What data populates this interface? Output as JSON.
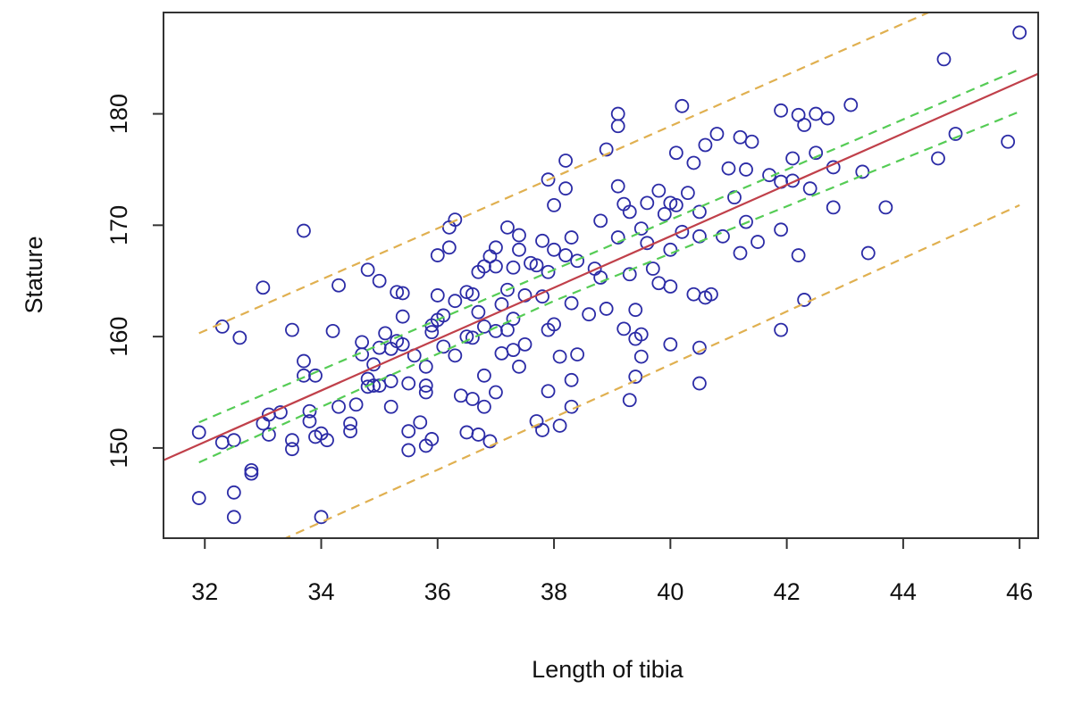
{
  "chart_data": {
    "type": "scatter",
    "xlabel": "Length of tibia",
    "ylabel": "Stature",
    "xlim": [
      31.29,
      46.32
    ],
    "ylim": [
      141.9,
      189.1
    ],
    "xticks": [
      32,
      34,
      36,
      38,
      40,
      42,
      44,
      46
    ],
    "yticks": [
      150,
      160,
      170,
      180
    ],
    "series": [
      {
        "type": "scatter",
        "color": "#2b2ba6",
        "x": [
          31.9,
          31.9,
          32.3,
          32.3,
          32.5,
          32.5,
          32.5,
          32.6,
          32.8,
          32.8,
          33,
          33,
          33.1,
          33.1,
          33.3,
          33.5,
          33.5,
          33.5,
          33.7,
          33.7,
          33.7,
          33.8,
          33.8,
          33.9,
          33.9,
          34,
          34,
          34.1,
          34.2,
          34.3,
          34.3,
          34.5,
          34.5,
          34.6,
          34.7,
          34.7,
          34.8,
          34.8,
          34.8,
          34.9,
          34.9,
          35,
          35,
          35,
          35.1,
          35.2,
          35.2,
          35.2,
          35.3,
          35.3,
          35.4,
          35.4,
          35.4,
          35.5,
          35.5,
          35.5,
          35.6,
          35.7,
          35.8,
          35.8,
          35.8,
          35.8,
          35.9,
          35.9,
          35.9,
          36,
          36,
          36,
          36.1,
          36.1,
          36.2,
          36.2,
          36.3,
          36.3,
          36.3,
          36.4,
          36.5,
          36.5,
          36.5,
          36.6,
          36.6,
          36.6,
          36.7,
          36.7,
          36.7,
          36.8,
          36.8,
          36.8,
          36.8,
          36.9,
          36.9,
          37,
          37,
          37,
          37,
          37.1,
          37.1,
          37.2,
          37.2,
          37.2,
          37.3,
          37.3,
          37.3,
          37.4,
          37.4,
          37.4,
          37.5,
          37.5,
          37.6,
          37.7,
          37.7,
          37.8,
          37.8,
          37.8,
          37.9,
          37.9,
          37.9,
          37.9,
          38,
          38,
          38,
          38.1,
          38.1,
          38.2,
          38.2,
          38.2,
          38.3,
          38.3,
          38.3,
          38.3,
          38.4,
          38.4,
          38.6,
          38.7,
          38.8,
          38.8,
          38.9,
          38.9,
          39.1,
          39.1,
          39.1,
          39.1,
          39.2,
          39.2,
          39.3,
          39.3,
          39.3,
          39.4,
          39.4,
          39.4,
          39.5,
          39.5,
          39.5,
          39.6,
          39.6,
          39.7,
          39.8,
          39.8,
          39.9,
          40,
          40,
          40,
          40,
          40.1,
          40.1,
          40.2,
          40.2,
          40.3,
          40.4,
          40.4,
          40.5,
          40.5,
          40.5,
          40.5,
          40.6,
          40.6,
          40.7,
          40.8,
          40.9,
          41,
          41.1,
          41.2,
          41.2,
          41.3,
          41.3,
          41.4,
          41.5,
          41.7,
          41.9,
          41.9,
          41.9,
          41.9,
          42.1,
          42.1,
          42.2,
          42.2,
          42.3,
          42.3,
          42.4,
          42.5,
          42.5,
          42.7,
          42.8,
          42.8,
          43.1,
          43.3,
          43.4,
          43.7,
          44.6,
          44.7,
          44.9,
          45.8,
          46
        ],
        "values": [
          151.4,
          145.5,
          160.9,
          150.5,
          150.7,
          146,
          143.8,
          159.9,
          148,
          147.7,
          152.2,
          164.4,
          151.2,
          153,
          153.2,
          160.6,
          150.7,
          149.9,
          169.5,
          157.8,
          156.5,
          153.3,
          152.4,
          156.5,
          151,
          151.3,
          143.8,
          150.7,
          160.5,
          164.6,
          153.7,
          151.5,
          152.2,
          153.9,
          159.5,
          158.4,
          166,
          156.2,
          155.5,
          155.6,
          157.5,
          165,
          159,
          155.6,
          160.3,
          158.9,
          156,
          153.7,
          164,
          159.6,
          159.3,
          161.8,
          163.9,
          155.8,
          151.5,
          149.8,
          158.3,
          152.3,
          157.3,
          155.6,
          155,
          150.2,
          161,
          160.4,
          150.8,
          163.7,
          167.3,
          161.5,
          161.9,
          159.1,
          168,
          169.8,
          170.5,
          163.2,
          158.3,
          154.7,
          164,
          160,
          151.4,
          163.8,
          154.4,
          159.9,
          165.8,
          162.2,
          151.2,
          166.3,
          160.9,
          156.5,
          153.7,
          167.2,
          150.6,
          168,
          166.3,
          155,
          160.5,
          162.9,
          158.5,
          169.8,
          164.2,
          160.6,
          166.2,
          161.6,
          158.8,
          169.1,
          167.8,
          157.3,
          163.7,
          159.3,
          166.6,
          166.4,
          152.4,
          168.6,
          163.6,
          151.6,
          174.1,
          165.8,
          160.6,
          155.1,
          171.8,
          167.8,
          161.1,
          152,
          158.2,
          175.8,
          173.3,
          167.3,
          168.9,
          163,
          156.1,
          153.7,
          166.8,
          158.4,
          162,
          166.1,
          170.4,
          165.3,
          176.8,
          162.5,
          180,
          178.9,
          173.5,
          168.9,
          171.9,
          160.7,
          171.2,
          165.6,
          154.3,
          162.4,
          159.8,
          156.4,
          169.7,
          160.2,
          158.2,
          172,
          168.4,
          166.1,
          173.1,
          164.8,
          171,
          172,
          167.8,
          164.5,
          159.3,
          176.5,
          171.8,
          180.7,
          169.4,
          172.9,
          175.6,
          163.8,
          171.2,
          169,
          159,
          155.8,
          177.2,
          163.5,
          163.8,
          178.2,
          169,
          175.1,
          172.5,
          177.9,
          167.5,
          170.3,
          175,
          177.5,
          168.5,
          174.5,
          180.3,
          173.9,
          169.6,
          160.6,
          176,
          174,
          179.9,
          167.3,
          179,
          163.3,
          173.3,
          180,
          176.5,
          179.6,
          175.2,
          171.6,
          180.8,
          174.8,
          167.5,
          171.6,
          176,
          184.9,
          178.2,
          177.5,
          187.3
        ]
      },
      {
        "type": "line",
        "color": "#e0b050",
        "dashed": true,
        "x": [
          31.9,
          39,
          46
        ],
        "values": [
          160.3,
          176.6,
          192.7
        ]
      },
      {
        "type": "line",
        "color": "#e0b050",
        "dashed": true,
        "x": [
          31.9,
          39,
          46
        ],
        "values": [
          138.4,
          155.1,
          171.8
        ]
      },
      {
        "type": "line",
        "color": "#55cc55",
        "dashed": true,
        "x": [
          31.9,
          38,
          46
        ],
        "values": [
          152.3,
          166,
          184
        ]
      },
      {
        "type": "line",
        "color": "#55cc55",
        "dashed": true,
        "x": [
          31.9,
          38,
          46
        ],
        "values": [
          148.7,
          163.2,
          180.2
        ]
      },
      {
        "type": "line",
        "color": "#c0404a",
        "dashed": false,
        "x": [
          31.29,
          46.32
        ],
        "values": [
          148.9,
          183.6
        ]
      }
    ]
  }
}
